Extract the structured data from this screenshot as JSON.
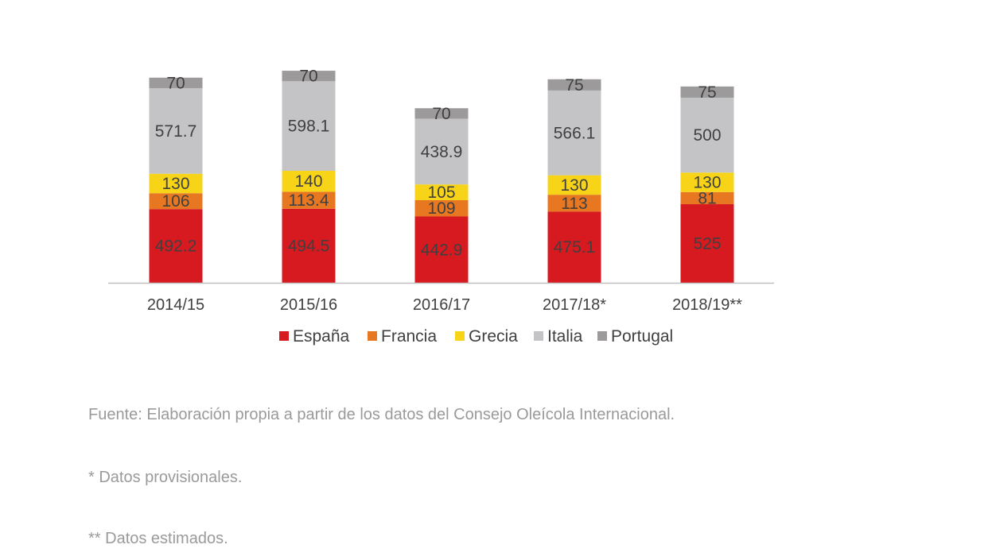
{
  "chart_data": {
    "type": "bar",
    "stacked": true,
    "categories": [
      "2014/15",
      "2015/16",
      "2016/17",
      "2017/18*",
      "2018/19**"
    ],
    "series": [
      {
        "name": "España",
        "color": "#d71920",
        "values": [
          492.2,
          494.5,
          442.9,
          475.1,
          525
        ]
      },
      {
        "name": "Francia",
        "color": "#e87722",
        "values": [
          106,
          113.4,
          109,
          113,
          81
        ]
      },
      {
        "name": "Grecia",
        "color": "#f7d417",
        "values": [
          130,
          140,
          105,
          130,
          130
        ]
      },
      {
        "name": "Italia",
        "color": "#c4c4c6",
        "values": [
          571.7,
          598.1,
          438.9,
          566.1,
          500
        ]
      },
      {
        "name": "Portugal",
        "color": "#9c9a9b",
        "values": [
          70,
          70,
          70,
          75,
          75
        ]
      }
    ],
    "value_labels": [
      [
        "492.2",
        "494.5",
        "442.9",
        "475.1",
        "525"
      ],
      [
        "106",
        "113.4",
        "109",
        "113",
        "81"
      ],
      [
        "130",
        "140",
        "105",
        "130",
        "130"
      ],
      [
        "571.7",
        "598.1",
        "438.9",
        "566.1",
        "500"
      ],
      [
        "70",
        "70",
        "70",
        "75",
        "75"
      ]
    ],
    "legend_position": "bottom",
    "grid": false,
    "ylim": [
      0,
      1400
    ]
  },
  "notes": {
    "source": "Fuente: Elaboración propia a partir de los datos del Consejo Oleícola Internacional.",
    "provisional": "* Datos provisionales.",
    "estimated": "** Datos estimados."
  }
}
